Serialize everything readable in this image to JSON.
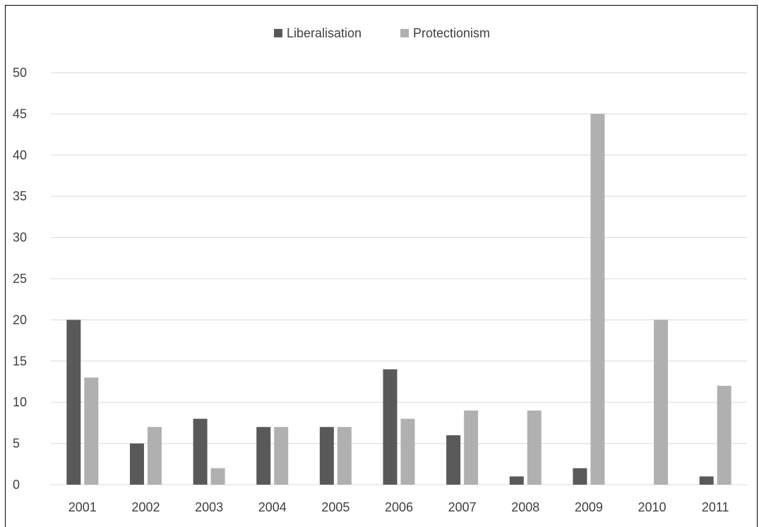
{
  "chart_data": {
    "type": "bar",
    "categories": [
      "2001",
      "2002",
      "2003",
      "2004",
      "2005",
      "2006",
      "2007",
      "2008",
      "2009",
      "2010",
      "2011"
    ],
    "series": [
      {
        "name": "Liberalisation",
        "color": "#595959",
        "values": [
          20,
          5,
          8,
          7,
          7,
          14,
          6,
          1,
          2,
          0,
          1
        ]
      },
      {
        "name": "Protectionism",
        "color": "#b0b0b0",
        "values": [
          13,
          7,
          2,
          7,
          7,
          8,
          9,
          9,
          45,
          20,
          12
        ]
      }
    ],
    "ylim": [
      0,
      50
    ],
    "yticks": [
      "0",
      "5",
      "10",
      "15",
      "20",
      "25",
      "30",
      "35",
      "40",
      "45",
      "50"
    ],
    "grid": true,
    "legend_position": "top-center"
  }
}
